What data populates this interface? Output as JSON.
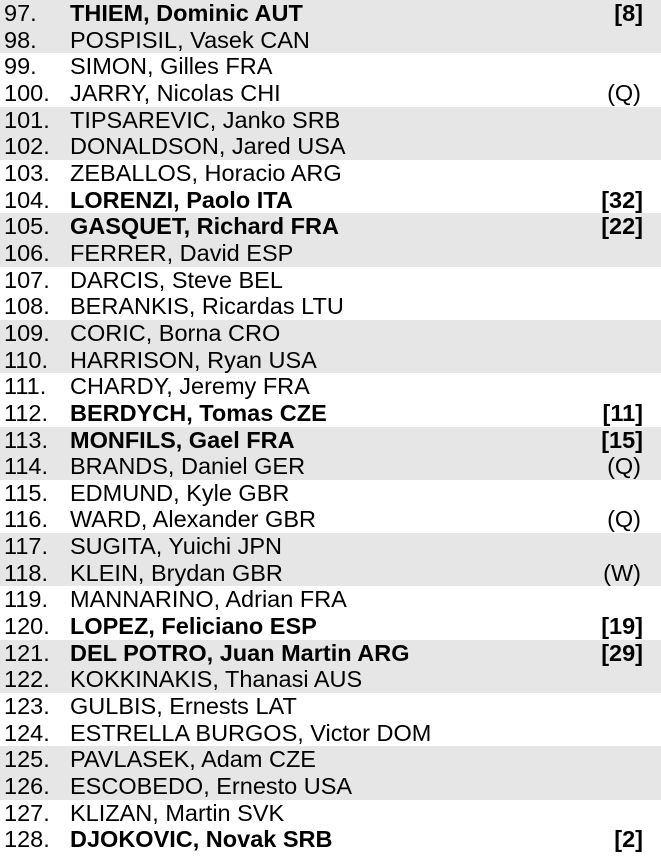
{
  "shade_color": "#e6e6e6",
  "entries": [
    {
      "num": "97.",
      "name": "THIEM, Dominic AUT",
      "mark": "[8]",
      "seeded": true
    },
    {
      "num": "98.",
      "name": "POSPISIL, Vasek CAN",
      "mark": "",
      "seeded": false
    },
    {
      "num": "99.",
      "name": "SIMON, Gilles FRA",
      "mark": "",
      "seeded": false
    },
    {
      "num": "100.",
      "name": "JARRY, Nicolas CHI",
      "mark": "(Q)",
      "seeded": false
    },
    {
      "num": "101.",
      "name": "TIPSAREVIC, Janko SRB",
      "mark": "",
      "seeded": false
    },
    {
      "num": "102.",
      "name": "DONALDSON, Jared USA",
      "mark": "",
      "seeded": false
    },
    {
      "num": "103.",
      "name": "ZEBALLOS, Horacio ARG",
      "mark": "",
      "seeded": false
    },
    {
      "num": "104.",
      "name": "LORENZI, Paolo ITA",
      "mark": "[32]",
      "seeded": true
    },
    {
      "num": "105.",
      "name": "GASQUET, Richard FRA",
      "mark": "[22]",
      "seeded": true
    },
    {
      "num": "106.",
      "name": "FERRER, David ESP",
      "mark": "",
      "seeded": false
    },
    {
      "num": "107.",
      "name": "DARCIS, Steve BEL",
      "mark": "",
      "seeded": false
    },
    {
      "num": "108.",
      "name": "BERANKIS, Ricardas LTU",
      "mark": "",
      "seeded": false
    },
    {
      "num": "109.",
      "name": "CORIC, Borna CRO",
      "mark": "",
      "seeded": false
    },
    {
      "num": "110.",
      "name": "HARRISON, Ryan USA",
      "mark": "",
      "seeded": false
    },
    {
      "num": "111.",
      "name": "CHARDY, Jeremy FRA",
      "mark": "",
      "seeded": false
    },
    {
      "num": "112.",
      "name": "BERDYCH, Tomas CZE",
      "mark": "[11]",
      "seeded": true
    },
    {
      "num": "113.",
      "name": "MONFILS, Gael FRA",
      "mark": "[15]",
      "seeded": true
    },
    {
      "num": "114.",
      "name": "BRANDS, Daniel GER",
      "mark": "(Q)",
      "seeded": false
    },
    {
      "num": "115.",
      "name": "EDMUND, Kyle GBR",
      "mark": "",
      "seeded": false
    },
    {
      "num": "116.",
      "name": "WARD, Alexander GBR",
      "mark": "(Q)",
      "seeded": false
    },
    {
      "num": "117.",
      "name": "SUGITA, Yuichi JPN",
      "mark": "",
      "seeded": false
    },
    {
      "num": "118.",
      "name": "KLEIN, Brydan GBR",
      "mark": "(W)",
      "seeded": false
    },
    {
      "num": "119.",
      "name": "MANNARINO, Adrian FRA",
      "mark": "",
      "seeded": false
    },
    {
      "num": "120.",
      "name": "LOPEZ, Feliciano ESP",
      "mark": "[19]",
      "seeded": true
    },
    {
      "num": "121.",
      "name": "DEL POTRO, Juan Martin ARG",
      "mark": "[29]",
      "seeded": true
    },
    {
      "num": "122.",
      "name": "KOKKINAKIS, Thanasi AUS",
      "mark": "",
      "seeded": false
    },
    {
      "num": "123.",
      "name": "GULBIS, Ernests LAT",
      "mark": "",
      "seeded": false
    },
    {
      "num": "124.",
      "name": "ESTRELLA BURGOS, Victor DOM",
      "mark": "",
      "seeded": false
    },
    {
      "num": "125.",
      "name": "PAVLASEK, Adam CZE",
      "mark": "",
      "seeded": false
    },
    {
      "num": "126.",
      "name": "ESCOBEDO, Ernesto USA",
      "mark": "",
      "seeded": false
    },
    {
      "num": "127.",
      "name": "KLIZAN, Martin SVK",
      "mark": "",
      "seeded": false
    },
    {
      "num": "128.",
      "name": "DJOKOVIC, Novak SRB",
      "mark": "[2]",
      "seeded": true
    }
  ]
}
